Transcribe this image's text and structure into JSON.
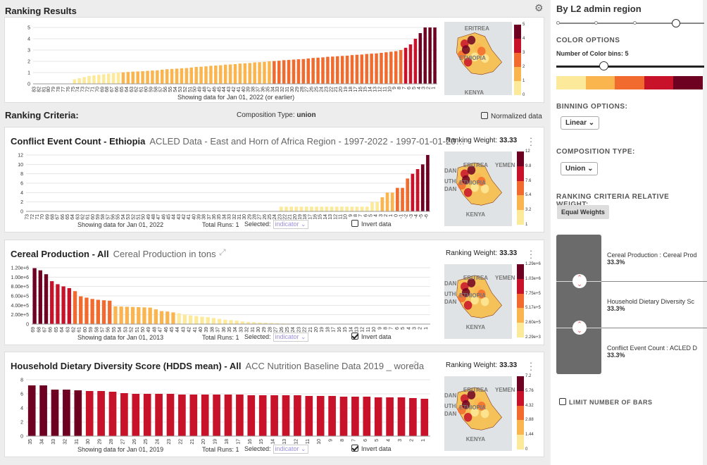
{
  "header": {
    "ranking_results": "Ranking Results",
    "ranking_criteria": "Ranking Criteria:",
    "composition_label": "Composition Type:",
    "composition_value": "union",
    "normalized": "Normalized data"
  },
  "ranking_chart": {
    "caption": "Showing data for Jan 01, 2022 (or earlier)",
    "yticks": [
      "5",
      "4",
      "3",
      "2",
      "1",
      "0"
    ],
    "legend": [
      "5",
      "4",
      "3",
      "2",
      "1",
      "0"
    ],
    "map_labels": [
      "ERITREA",
      "ETHIOPIA",
      "KENYA"
    ]
  },
  "panels": [
    {
      "title": "Conflict Event Count - Ethiopia",
      "subtitle": "ACLED Data - East and Horn of Africa Region - 1997-2022 - 1997-01-01-20…",
      "weight_label": "Ranking Weight:",
      "weight": "33.33",
      "caption": "Showing data for Jan 01, 2022",
      "runs": "Total Runs: 1",
      "selected": "Selected:",
      "select_value": "indicator ⌄",
      "invert": "Invert data",
      "invert_on": false,
      "yticks": [
        "12",
        "10",
        "8",
        "6",
        "4",
        "2",
        "0"
      ],
      "legend": [
        "12",
        "9.8",
        "7.6",
        "5.4",
        "3.2",
        "1"
      ],
      "map_labels": [
        "ERITREA",
        "YEMEN",
        "DAN",
        "ETHIOPIA",
        "UTH",
        "DAN",
        "KENYA"
      ]
    },
    {
      "title": "Cereal Production - All",
      "subtitle": "Cereal Production in tons",
      "weight_label": "Ranking Weight:",
      "weight": "33.33",
      "caption": "Showing data for Jan 01, 2013",
      "runs": "Total Runs: 1",
      "selected": "Selected:",
      "select_value": "indicator ⌄",
      "invert": "Invert data",
      "invert_on": true,
      "yticks": [
        "1.20e+6",
        "1.00e+6",
        "8.00e+5",
        "6.00e+5",
        "4.00e+5",
        "2.00e+5",
        "0"
      ],
      "legend": [
        "1.29e+6",
        "1.03e+6",
        "7.75e+5",
        "5.17e+5",
        "2.60e+5",
        "2.29e+3"
      ],
      "map_labels": [
        "ERITREA",
        "YEMEN",
        "DAN",
        "ETHIOPIA",
        "UTH",
        "DAN",
        "KENYA"
      ]
    },
    {
      "title": "Household Dietary Diversity Score (HDDS mean) - All",
      "subtitle": "ACC Nutrition Baseline Data 2019 _ woreda",
      "weight_label": "Ranking Weight:",
      "weight": "33.33",
      "caption": "Showing data for Jan 01, 2019",
      "runs": "Total Runs: 1",
      "selected": "Selected:",
      "select_value": "indicator ⌄",
      "invert": "Invert data",
      "invert_on": true,
      "yticks": [
        "8",
        "6",
        "4",
        "2",
        "0"
      ],
      "legend": [
        "7.2",
        "5.76",
        "4.32",
        "2.88",
        "1.44",
        "0"
      ],
      "map_labels": [
        "ERITREA",
        "YEMEN",
        "DAN",
        "ETHIOPIA",
        "UTH",
        "DAN",
        "KENYA"
      ]
    }
  ],
  "chart_data": [
    {
      "type": "bar",
      "title": "Ranking Results",
      "ylim": [
        0,
        5
      ],
      "categories_desc_from": 83,
      "values": [
        0,
        0,
        0,
        0,
        0,
        0,
        0,
        0,
        0.4,
        0.5,
        0.6,
        0.7,
        0.75,
        0.8,
        0.85,
        0.9,
        0.95,
        1.0,
        1.02,
        1.05,
        1.08,
        1.1,
        1.12,
        1.15,
        1.18,
        1.2,
        1.25,
        1.3,
        1.32,
        1.35,
        1.38,
        1.4,
        1.45,
        1.5,
        1.52,
        1.55,
        1.6,
        1.62,
        1.65,
        1.7,
        1.72,
        1.75,
        1.8,
        1.82,
        1.85,
        1.9,
        1.92,
        1.95,
        2.0,
        2.02,
        2.05,
        2.1,
        2.12,
        2.15,
        2.18,
        2.2,
        2.25,
        2.3,
        2.32,
        2.35,
        2.4,
        2.42,
        2.45,
        2.48,
        2.5,
        2.55,
        2.58,
        2.6,
        2.65,
        2.68,
        2.7,
        2.75,
        2.8,
        2.85,
        2.9,
        3.0,
        3.2,
        3.5,
        4.0,
        4.5,
        5.0,
        5.0,
        5.0
      ]
    },
    {
      "type": "bar",
      "title": "Conflict Event Count - Ethiopia",
      "ylim": [
        0,
        12
      ],
      "categories_desc_from": 73,
      "values": [
        0,
        0,
        0,
        0,
        0,
        0,
        0,
        0,
        0,
        0,
        0,
        0,
        0,
        0,
        0,
        0,
        0,
        0,
        0,
        0,
        0,
        0,
        0,
        0,
        0,
        0,
        0,
        0,
        0,
        0,
        0,
        0,
        0,
        0,
        0,
        0,
        0,
        0,
        0,
        0,
        0,
        0,
        0,
        0,
        0,
        0,
        0,
        0,
        0,
        0,
        1,
        1,
        1,
        1,
        1,
        1,
        1,
        1,
        1,
        1,
        1,
        1,
        1,
        1,
        1,
        1,
        1,
        1,
        2,
        2,
        3,
        4,
        4,
        5,
        5,
        7,
        8,
        9,
        10,
        12
      ]
    },
    {
      "type": "bar",
      "title": "Cereal Production - All",
      "ylim": [
        0,
        1300000
      ],
      "categories_desc_from": 69,
      "values": [
        1290000,
        1240000,
        1150000,
        990000,
        920000,
        870000,
        830000,
        760000,
        640000,
        610000,
        580000,
        560000,
        550000,
        540000,
        410000,
        405000,
        400000,
        395000,
        390000,
        385000,
        380000,
        340000,
        300000,
        290000,
        270000,
        250000,
        220000,
        200000,
        185000,
        170000,
        160000,
        140000,
        120000,
        100000,
        90000,
        80000,
        60000,
        50000,
        45000,
        35000,
        30000,
        25000,
        20000,
        16000,
        12000,
        10000,
        8000,
        6000,
        5000,
        4000,
        3000,
        2500,
        2000,
        1500,
        1200,
        1000,
        800,
        600,
        500,
        400,
        300,
        200,
        150,
        100,
        80,
        60,
        40,
        20,
        10
      ]
    },
    {
      "type": "bar",
      "title": "Household Dietary Diversity Score (HDDS mean) - All",
      "ylim": [
        0,
        8
      ],
      "categories": [
        "35",
        "34",
        "33",
        "32",
        "31",
        "30",
        "29",
        "28",
        "27",
        "26",
        "25",
        "24",
        "23",
        "22",
        "21",
        "20",
        "19",
        "18",
        "17",
        "16",
        "15",
        "14",
        "13",
        "12",
        "11",
        "10",
        "9",
        "8",
        "7",
        "6",
        "5",
        "4",
        "3",
        "2",
        "1"
      ],
      "values": [
        7.2,
        7.2,
        6.6,
        6.6,
        6.5,
        6.4,
        6.4,
        6.3,
        6.1,
        6.0,
        6.0,
        6.0,
        6.0,
        5.9,
        5.9,
        5.9,
        5.9,
        5.9,
        5.9,
        5.8,
        5.8,
        5.8,
        5.8,
        5.8,
        5.7,
        5.7,
        5.7,
        5.6,
        5.6,
        5.6,
        5.5,
        5.5,
        5.5,
        5.4,
        5.3
      ]
    }
  ],
  "sidebar": {
    "title": "By L2 admin region",
    "color_options": "COLOR OPTIONS",
    "num_bins": "Number of Color bins: 5",
    "bins_value": 5,
    "binning": "BINNING OPTIONS:",
    "binning_value": "Linear ⌄",
    "composition": "COMPOSITION TYPE:",
    "composition_value": "Union ⌄",
    "weight_title": "RANKING CRITERIA RELATIVE WEIGHT:",
    "equal_weights": "Equal Weights",
    "weights": [
      {
        "name": "Cereal Production : Cereal Prod",
        "pct": "33.3%"
      },
      {
        "name": "Household Dietary Diversity Sc",
        "pct": "33.3%"
      },
      {
        "name": "Conflict Event Count : ACLED D",
        "pct": "33.3%"
      }
    ],
    "limit_bars": "LIMIT NUMBER OF BARS"
  },
  "colors": [
    "#fde99a",
    "#fbb54f",
    "#f26b2e",
    "#c8122a",
    "#6e0022"
  ]
}
